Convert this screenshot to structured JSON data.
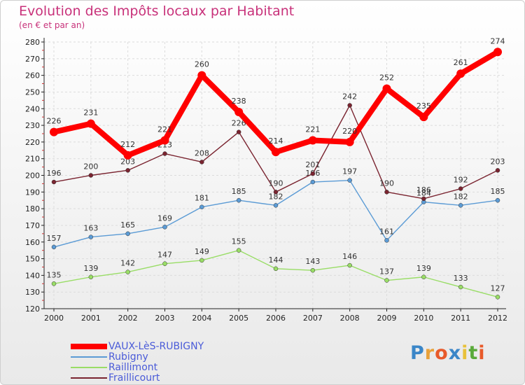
{
  "chart_data": {
    "type": "line",
    "title": "Evolution des Impôts locaux par Habitant",
    "subtitle": "(en € et par an)",
    "x": [
      "2000",
      "2001",
      "2002",
      "2003",
      "2004",
      "2005",
      "2006",
      "2007",
      "2008",
      "2009",
      "2010",
      "2011",
      "2012"
    ],
    "ylim": [
      120,
      280
    ],
    "yticks": [
      120,
      130,
      140,
      150,
      160,
      170,
      180,
      190,
      200,
      210,
      220,
      230,
      240,
      250,
      260,
      270,
      280
    ],
    "grid": true,
    "legend_position": "bottom-left",
    "series": [
      {
        "name": "Raillimont",
        "color": "#99dd66",
        "values": [
          135,
          139,
          142,
          147,
          149,
          155,
          144,
          143,
          146,
          137,
          139,
          133,
          127
        ]
      },
      {
        "name": "Rubigny",
        "color": "#5b9bd5",
        "values": [
          157,
          163,
          165,
          169,
          181,
          185,
          182,
          196,
          197,
          161,
          184,
          182,
          185
        ]
      },
      {
        "name": "Fraillicourt",
        "color": "#7a2430",
        "values": [
          196,
          200,
          203,
          213,
          208,
          226,
          190,
          201,
          242,
          190,
          186,
          192,
          203
        ]
      },
      {
        "name": "VAUX-LèS-RUBIGNY",
        "color": "#ff0000",
        "values": [
          226,
          231,
          212,
          221,
          260,
          238,
          214,
          221,
          220,
          252,
          235,
          261,
          274
        ]
      }
    ]
  },
  "legend": [
    {
      "label": "VAUX-LèS-RUBIGNY",
      "color": "#ff0000"
    },
    {
      "label": "Rubigny",
      "color": "#5b9bd5"
    },
    {
      "label": "Raillimont",
      "color": "#99dd66"
    },
    {
      "label": "Fraillicourt",
      "color": "#7a2430"
    }
  ],
  "brand": {
    "letters": [
      "P",
      "r",
      "o",
      "x",
      "i",
      "t",
      "i"
    ],
    "colors": [
      "#3a86c8",
      "#e8a13a",
      "#e85a2a",
      "#3a86c8",
      "#e8c13a",
      "#5aaa3a",
      "#e85a2a"
    ]
  }
}
